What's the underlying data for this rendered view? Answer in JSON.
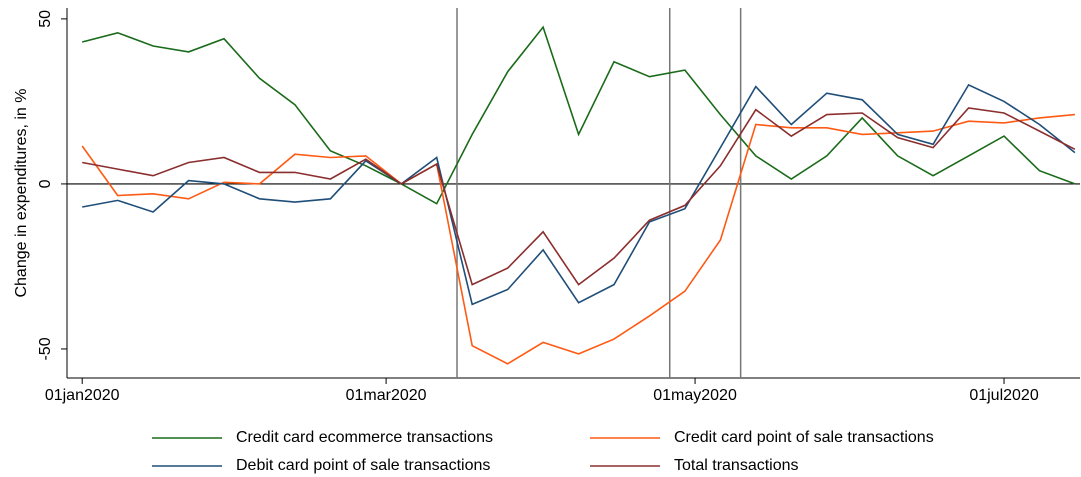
{
  "chart_data": {
    "type": "line",
    "ylabel": "Change in expenditures, in %",
    "x": [
      "2020-01-01",
      "2020-01-08",
      "2020-01-15",
      "2020-01-22",
      "2020-01-29",
      "2020-02-05",
      "2020-02-12",
      "2020-02-19",
      "2020-02-26",
      "2020-03-04",
      "2020-03-11",
      "2020-03-18",
      "2020-03-25",
      "2020-04-01",
      "2020-04-08",
      "2020-04-15",
      "2020-04-22",
      "2020-04-29",
      "2020-05-06",
      "2020-05-13",
      "2020-05-20",
      "2020-05-27",
      "2020-06-03",
      "2020-06-10",
      "2020-06-17",
      "2020-06-24",
      "2020-07-01",
      "2020-07-08",
      "2020-07-15"
    ],
    "series": [
      {
        "name": "Credit card ecommerce transactions",
        "color": "#1a6b1a",
        "values": [
          43,
          45.8,
          41.8,
          40,
          44,
          32,
          24,
          10,
          5.5,
          0,
          -6,
          15,
          34,
          47.5,
          15,
          37,
          32.5,
          34.5,
          21,
          8.5,
          1.5,
          8.5,
          20,
          8.5,
          2.5,
          8.5,
          14.5,
          4,
          0
        ]
      },
      {
        "name": "Credit card point of sale transactions",
        "color": "#ff5a14",
        "values": [
          11.5,
          -3.5,
          -3,
          -4.5,
          0.5,
          0,
          9,
          8,
          8.5,
          0,
          6,
          -49,
          -54.5,
          -48,
          -51.5,
          -47,
          -40,
          -32.5,
          -17,
          18,
          17,
          17,
          15,
          15.5,
          16,
          19,
          18.5,
          20,
          21
        ]
      },
      {
        "name": "Debit card point of sale transactions",
        "color": "#1f4e79",
        "values": [
          -7,
          -5,
          -8.5,
          1,
          0,
          -4.5,
          -5.5,
          -4.5,
          7,
          0,
          8,
          -36.5,
          -32,
          -20,
          -36,
          -30.5,
          -11.5,
          -7.5,
          11,
          29.5,
          18,
          27.5,
          25.5,
          15,
          12,
          30,
          25,
          18,
          9.5
        ]
      },
      {
        "name": "Total transactions",
        "color": "#8b2e2e",
        "values": [
          6.5,
          4.5,
          2.5,
          6.5,
          8,
          3.5,
          3.5,
          1.5,
          7.5,
          0,
          6,
          -30.5,
          -25.5,
          -14.5,
          -30.5,
          -22.5,
          -11,
          -6.5,
          5.5,
          22.5,
          14.5,
          21,
          21.5,
          14,
          11,
          23,
          21.5,
          16,
          10.5
        ]
      }
    ],
    "xlim": [
      "2019-12-29",
      "2020-07-16"
    ],
    "xticks": [
      {
        "value": "2020-01-01",
        "label": "01jan2020"
      },
      {
        "value": "2020-03-01",
        "label": "01mar2020"
      },
      {
        "value": "2020-05-01",
        "label": "01may2020"
      },
      {
        "value": "2020-07-01",
        "label": "01jul2020"
      }
    ],
    "ylim": [
      -58.8,
      53.3
    ],
    "yticks": [
      -50,
      0,
      50
    ],
    "hlines": [
      0
    ],
    "vlines": [
      "2020-03-15",
      "2020-04-26",
      "2020-05-10"
    ],
    "grid": false
  }
}
